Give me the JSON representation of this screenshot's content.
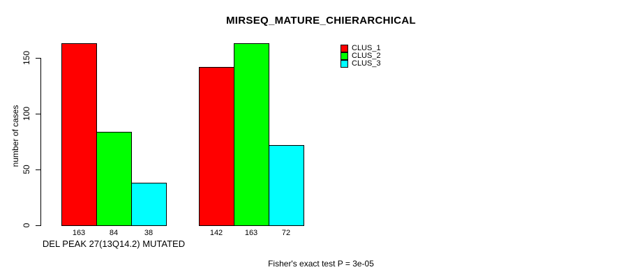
{
  "chart_data": {
    "type": "bar",
    "title": "MIRSEQ_MATURE_CHIERARCHICAL",
    "ylabel": "number of cases",
    "footnote": "Fisher's exact test P = 3e-05",
    "yticks": [
      0,
      50,
      100,
      150
    ],
    "ylim": [
      0,
      150
    ],
    "grid": false,
    "legend_position": "top-right",
    "bar_border_color": "#000000",
    "series": [
      {
        "name": "CLUS_1",
        "color": "#FF0000"
      },
      {
        "name": "CLUS_2",
        "color": "#00FF00"
      },
      {
        "name": "CLUS_3",
        "color": "#00FFFF"
      }
    ],
    "groups": [
      {
        "label": "DEL PEAK 27(13Q14.2) MUTATED",
        "values": [
          163,
          84,
          38
        ]
      },
      {
        "label": "",
        "values": [
          142,
          163,
          72
        ]
      }
    ]
  }
}
